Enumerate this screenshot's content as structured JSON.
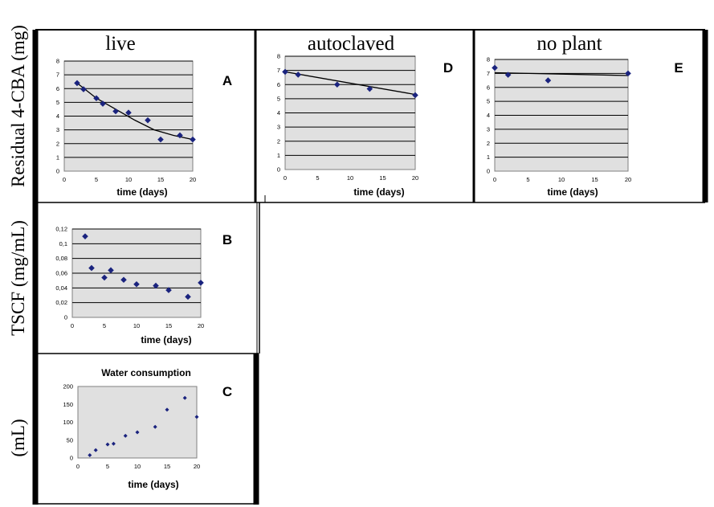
{
  "labels": {
    "y_left_1": "Residual 4-CBA (mg)",
    "y_left_2": "TSCF (mg/mL)",
    "y_left_3": "(mL)"
  },
  "colors": {
    "plot_bg": "#e0e0e0",
    "marker": "#1a237e",
    "line": "#000000"
  },
  "chart_data": [
    {
      "id": "A",
      "type": "scatter",
      "title": "live",
      "panel_letter": "A",
      "xlabel": "time (days)",
      "ylabel": "",
      "xlim": [
        0,
        20
      ],
      "ylim": [
        0,
        8
      ],
      "xticks": [
        0,
        5,
        10,
        15,
        20
      ],
      "xtick_labels": [
        "0",
        "5",
        "10",
        "15",
        "20"
      ],
      "yticks": [
        0,
        1,
        2,
        3,
        4,
        5,
        6,
        7,
        8
      ],
      "ytick_labels": [
        "0",
        "1",
        "2",
        "3",
        "4",
        "5",
        "6",
        "7",
        "8"
      ],
      "grid": true,
      "series": [
        {
          "x": [
            2,
            3,
            5,
            6,
            8,
            10,
            13,
            15,
            18,
            20
          ],
          "y": [
            6.4,
            5.95,
            5.3,
            4.9,
            4.35,
            4.25,
            3.7,
            2.3,
            2.6,
            2.3
          ]
        }
      ],
      "trendline": {
        "x": [
          2,
          5,
          8,
          11,
          14,
          17,
          20
        ],
        "y": [
          6.4,
          5.3,
          4.5,
          3.7,
          3.0,
          2.6,
          2.3
        ]
      }
    },
    {
      "id": "B",
      "type": "scatter",
      "title": "",
      "panel_letter": "B",
      "xlabel": "time (days)",
      "ylabel": "",
      "xlim": [
        0,
        20
      ],
      "ylim": [
        0,
        0.12
      ],
      "xticks": [
        0,
        5,
        10,
        15,
        20
      ],
      "xtick_labels": [
        "0",
        "5",
        "10",
        "15",
        "20"
      ],
      "yticks": [
        0,
        0.02,
        0.04,
        0.06,
        0.08,
        0.1,
        0.12
      ],
      "ytick_labels": [
        "0",
        "0,02",
        "0,04",
        "0,06",
        "0,08",
        "0,1",
        "0,12"
      ],
      "grid": true,
      "series": [
        {
          "x": [
            2,
            3,
            5,
            6,
            8,
            10,
            13,
            15,
            18,
            20
          ],
          "y": [
            0.11,
            0.067,
            0.054,
            0.064,
            0.051,
            0.045,
            0.043,
            0.037,
            0.028,
            0.047
          ]
        }
      ]
    },
    {
      "id": "C",
      "type": "scatter",
      "title": "Water consumption",
      "panel_letter": "C",
      "xlabel": "time (days)",
      "ylabel": "",
      "xlim": [
        0,
        20
      ],
      "ylim": [
        0,
        200
      ],
      "xticks": [
        0,
        5,
        10,
        15,
        20
      ],
      "xtick_labels": [
        "0",
        "5",
        "10",
        "15",
        "20"
      ],
      "yticks": [
        0,
        50,
        100,
        150,
        200
      ],
      "ytick_labels": [
        "0",
        "50",
        "100",
        "150",
        "200"
      ],
      "grid": false,
      "series": [
        {
          "x": [
            2,
            3,
            5,
            6,
            8,
            10,
            13,
            15,
            18,
            20
          ],
          "y": [
            8,
            22,
            38,
            40,
            62,
            72,
            87,
            135,
            168,
            115
          ]
        }
      ]
    },
    {
      "id": "D",
      "type": "scatter",
      "title": "autoclaved",
      "panel_letter": "D",
      "xlabel": "time (days)",
      "ylabel": "",
      "xlim": [
        0,
        20
      ],
      "ylim": [
        0,
        8
      ],
      "xticks": [
        0,
        5,
        10,
        15,
        20
      ],
      "xtick_labels": [
        "0",
        "5",
        "10",
        "15",
        "20"
      ],
      "yticks": [
        0,
        1,
        2,
        3,
        4,
        5,
        6,
        7,
        8
      ],
      "ytick_labels": [
        "0",
        "1",
        "2",
        "3",
        "4",
        "5",
        "6",
        "7",
        "8"
      ],
      "grid": true,
      "series": [
        {
          "x": [
            0,
            2,
            8,
            13,
            20
          ],
          "y": [
            6.9,
            6.7,
            6.0,
            5.7,
            5.25
          ]
        }
      ],
      "trendline": {
        "x": [
          0,
          20
        ],
        "y": [
          6.9,
          5.3
        ]
      }
    },
    {
      "id": "E",
      "type": "scatter",
      "title": "no plant",
      "panel_letter": "E",
      "xlabel": "time (days)",
      "ylabel": "",
      "xlim": [
        0,
        20
      ],
      "ylim": [
        0,
        8
      ],
      "xticks": [
        0,
        5,
        10,
        15,
        20
      ],
      "xtick_labels": [
        "0",
        "5",
        "10",
        "15",
        "20"
      ],
      "yticks": [
        0,
        1,
        2,
        3,
        4,
        5,
        6,
        7,
        8
      ],
      "ytick_labels": [
        "0",
        "1",
        "2",
        "3",
        "4",
        "5",
        "6",
        "7",
        "8"
      ],
      "grid": true,
      "series": [
        {
          "x": [
            0,
            2,
            8,
            20
          ],
          "y": [
            7.4,
            6.9,
            6.5,
            7.0
          ]
        }
      ],
      "trendline": {
        "x": [
          0,
          20
        ],
        "y": [
          7.05,
          6.85
        ]
      }
    }
  ]
}
